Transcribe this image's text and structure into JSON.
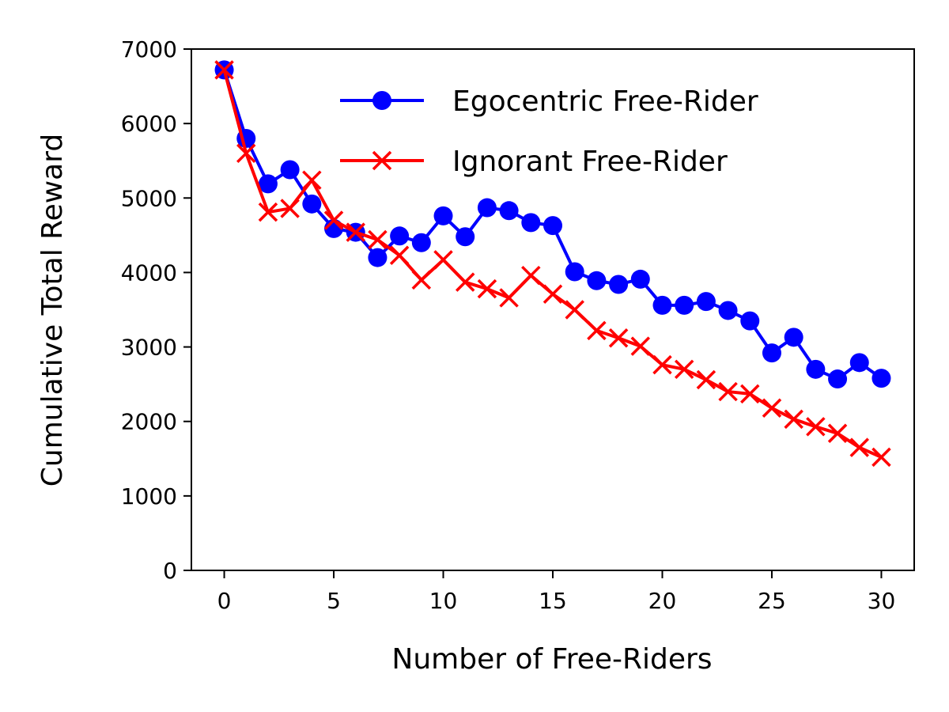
{
  "chart_data": {
    "type": "line",
    "title": "",
    "xlabel": "Number of Free-Riders",
    "ylabel": "Cumulative Total Reward",
    "xlim": [
      -1.5,
      31.5
    ],
    "ylim": [
      0,
      7000
    ],
    "xticks": [
      0,
      5,
      10,
      15,
      20,
      25,
      30
    ],
    "yticks": [
      0,
      1000,
      2000,
      3000,
      4000,
      5000,
      6000,
      7000
    ],
    "grid": false,
    "legend_position": "top-right",
    "x": [
      0,
      1,
      2,
      3,
      4,
      5,
      6,
      7,
      8,
      9,
      10,
      11,
      12,
      13,
      14,
      15,
      16,
      17,
      18,
      19,
      20,
      21,
      22,
      23,
      24,
      25,
      26,
      27,
      28,
      29,
      30
    ],
    "series": [
      {
        "name": "Egocentric Free-Rider",
        "color": "#0000ff",
        "marker": "circle",
        "values": [
          6720,
          5800,
          5190,
          5380,
          4920,
          4590,
          4540,
          4200,
          4490,
          4400,
          4760,
          4480,
          4870,
          4830,
          4670,
          4630,
          4010,
          3890,
          3840,
          3910,
          3560,
          3560,
          3610,
          3490,
          3350,
          2920,
          3130,
          2700,
          2570,
          2790,
          2580
        ]
      },
      {
        "name": "Ignorant Free-Rider",
        "color": "#ff0000",
        "marker": "x",
        "values": [
          6720,
          5600,
          4810,
          4860,
          5240,
          4700,
          4540,
          4440,
          4230,
          3900,
          4170,
          3870,
          3780,
          3660,
          3960,
          3710,
          3500,
          3220,
          3120,
          3010,
          2760,
          2700,
          2560,
          2400,
          2370,
          2180,
          2030,
          1930,
          1840,
          1650,
          1520
        ]
      }
    ]
  }
}
